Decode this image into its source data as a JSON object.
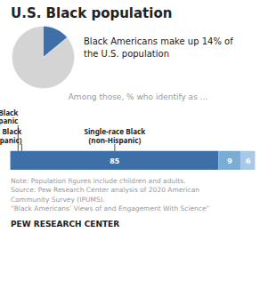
{
  "chart_data": [
    {
      "type": "pie",
      "title": "U.S. Black population",
      "values": [
        14,
        86
      ],
      "colors": [
        "#3d6fa8",
        "#d4d4d4"
      ],
      "annotations": [
        "Black Americans make up 14% of\nthe U.S. population"
      ]
    },
    {
      "type": "bar",
      "subtitle": "Among those, % who identify as ...",
      "orientation": "horizontal",
      "stacked": true,
      "categories": [
        null
      ],
      "series": [
        {
          "name": "Single-race Black\n(non-Hispanic)",
          "color": "#3d6fa8",
          "values": [
            85
          ]
        },
        {
          "name": "Multiracial Black\n(non-Hispanic)",
          "color": "#7aadd4",
          "values": [
            9
          ]
        },
        {
          "name": "Black\nHispanic",
          "color": "#a8c8e8",
          "values": [
            6
          ]
        }
      ],
      "data_labels": true,
      "tick_labels": false,
      "xlim": [
        0,
        100
      ],
      "annotations": [
        "Note: Population figures include children and adults.\nSource: Pew Research Center analysis of 2020 American\nCommunity Survey (IPUMS).\n“Black Americans’ Views of and Engagement With Science”",
        "PEW RESEARCH CENTER"
      ]
    }
  ]
}
